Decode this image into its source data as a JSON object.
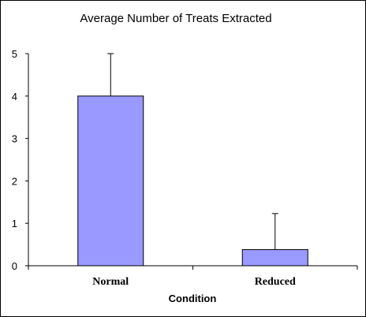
{
  "chart_data": {
    "type": "bar",
    "title": "Average Number of Treats Extracted",
    "xlabel": "Condition",
    "ylabel": "",
    "categories": [
      "Normal",
      "Reduced"
    ],
    "values": [
      4.0,
      0.38
    ],
    "error_bars_upper": [
      1.0,
      0.85
    ],
    "ylim": [
      0,
      5
    ],
    "yticks": [
      "0",
      "1",
      "2",
      "3",
      "4",
      "5"
    ],
    "grid": false,
    "legend": "none",
    "bar_color": "#9999ff",
    "bar_stroke": "#000000"
  }
}
